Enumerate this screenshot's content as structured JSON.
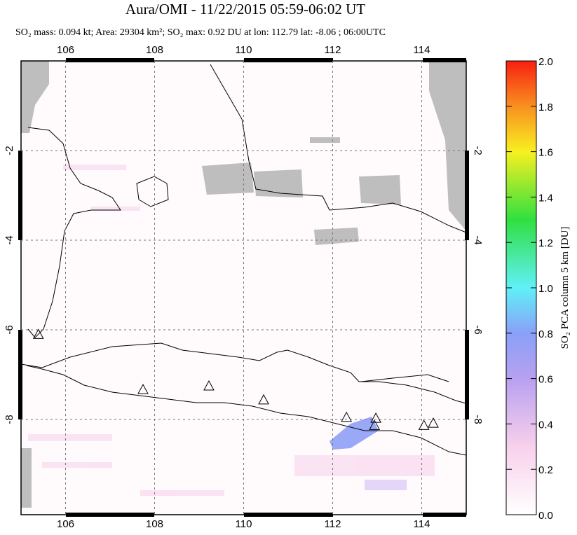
{
  "chart_data": {
    "type": "map",
    "title": "Aura/OMI - 11/22/2015 05:59-06:02 UT",
    "subtitle": "SO₂ mass: 0.094 kt; Area: 29304 km²; SO₂ max: 0.92 DU at lon: 112.79 lat: -8.06 ; 06:00UTC",
    "xlim": [
      105,
      115
    ],
    "xticks": [
      106,
      108,
      110,
      112,
      114
    ],
    "ylim": [
      -10.125,
      0
    ],
    "yticks": [
      -2,
      -4,
      -6,
      -8
    ],
    "grid": true,
    "volcanoes": {
      "lon": [
        105.39,
        107.74,
        109.22,
        110.45,
        112.31,
        112.97,
        112.94,
        114.05,
        114.26
      ],
      "lat": [
        -6.1,
        -7.33,
        -7.25,
        -7.56,
        -7.95,
        -7.97,
        -8.13,
        -8.13,
        -8.08
      ]
    },
    "colorbar": {
      "label": "SO₂ PCA column 5 km [DU]",
      "lim": [
        0,
        2
      ],
      "ticks": [
        {
          "value": 0,
          "label": "0.0"
        },
        {
          "value": 0.2,
          "label": "0.2"
        },
        {
          "value": 0.4,
          "label": "0.4"
        },
        {
          "value": 0.6,
          "label": "0.6"
        },
        {
          "value": 0.8,
          "label": "0.8"
        },
        {
          "value": 1,
          "label": "1.0"
        },
        {
          "value": 1.2,
          "label": "1.2"
        },
        {
          "value": 1.4,
          "label": "1.4"
        },
        {
          "value": 1.6,
          "label": "1.6"
        },
        {
          "value": 1.8,
          "label": "1.8"
        },
        {
          "value": 2,
          "label": "2.0"
        }
      ]
    }
  }
}
